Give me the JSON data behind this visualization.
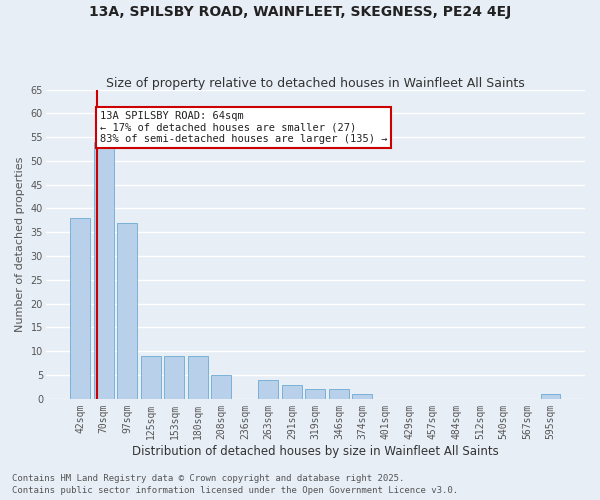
{
  "title1": "13A, SPILSBY ROAD, WAINFLEET, SKEGNESS, PE24 4EJ",
  "title2": "Size of property relative to detached houses in Wainfleet All Saints",
  "xlabel": "Distribution of detached houses by size in Wainfleet All Saints",
  "ylabel": "Number of detached properties",
  "categories": [
    "42sqm",
    "70sqm",
    "97sqm",
    "125sqm",
    "153sqm",
    "180sqm",
    "208sqm",
    "236sqm",
    "263sqm",
    "291sqm",
    "319sqm",
    "346sqm",
    "374sqm",
    "401sqm",
    "429sqm",
    "457sqm",
    "484sqm",
    "512sqm",
    "540sqm",
    "567sqm",
    "595sqm"
  ],
  "values": [
    38,
    54,
    37,
    9,
    9,
    9,
    5,
    0,
    4,
    3,
    2,
    2,
    1,
    0,
    0,
    0,
    0,
    0,
    0,
    0,
    1
  ],
  "bar_color": "#b8d0ea",
  "bar_edge_color": "#6aaad4",
  "background_color": "#e8eef6",
  "grid_color": "#ffffff",
  "annotation_text": "13A SPILSBY ROAD: 64sqm\n← 17% of detached houses are smaller (27)\n83% of semi-detached houses are larger (135) →",
  "annotation_box_color": "#ffffff",
  "annotation_box_edge": "#cc0000",
  "vline_color": "#cc0000",
  "ylim": [
    0,
    65
  ],
  "yticks": [
    0,
    5,
    10,
    15,
    20,
    25,
    30,
    35,
    40,
    45,
    50,
    55,
    60,
    65
  ],
  "footer1": "Contains HM Land Registry data © Crown copyright and database right 2025.",
  "footer2": "Contains public sector information licensed under the Open Government Licence v3.0.",
  "title_fontsize": 10,
  "subtitle_fontsize": 9,
  "tick_fontsize": 7,
  "ylabel_fontsize": 8,
  "xlabel_fontsize": 8.5,
  "footer_fontsize": 6.5,
  "annotation_fontsize": 7.5
}
